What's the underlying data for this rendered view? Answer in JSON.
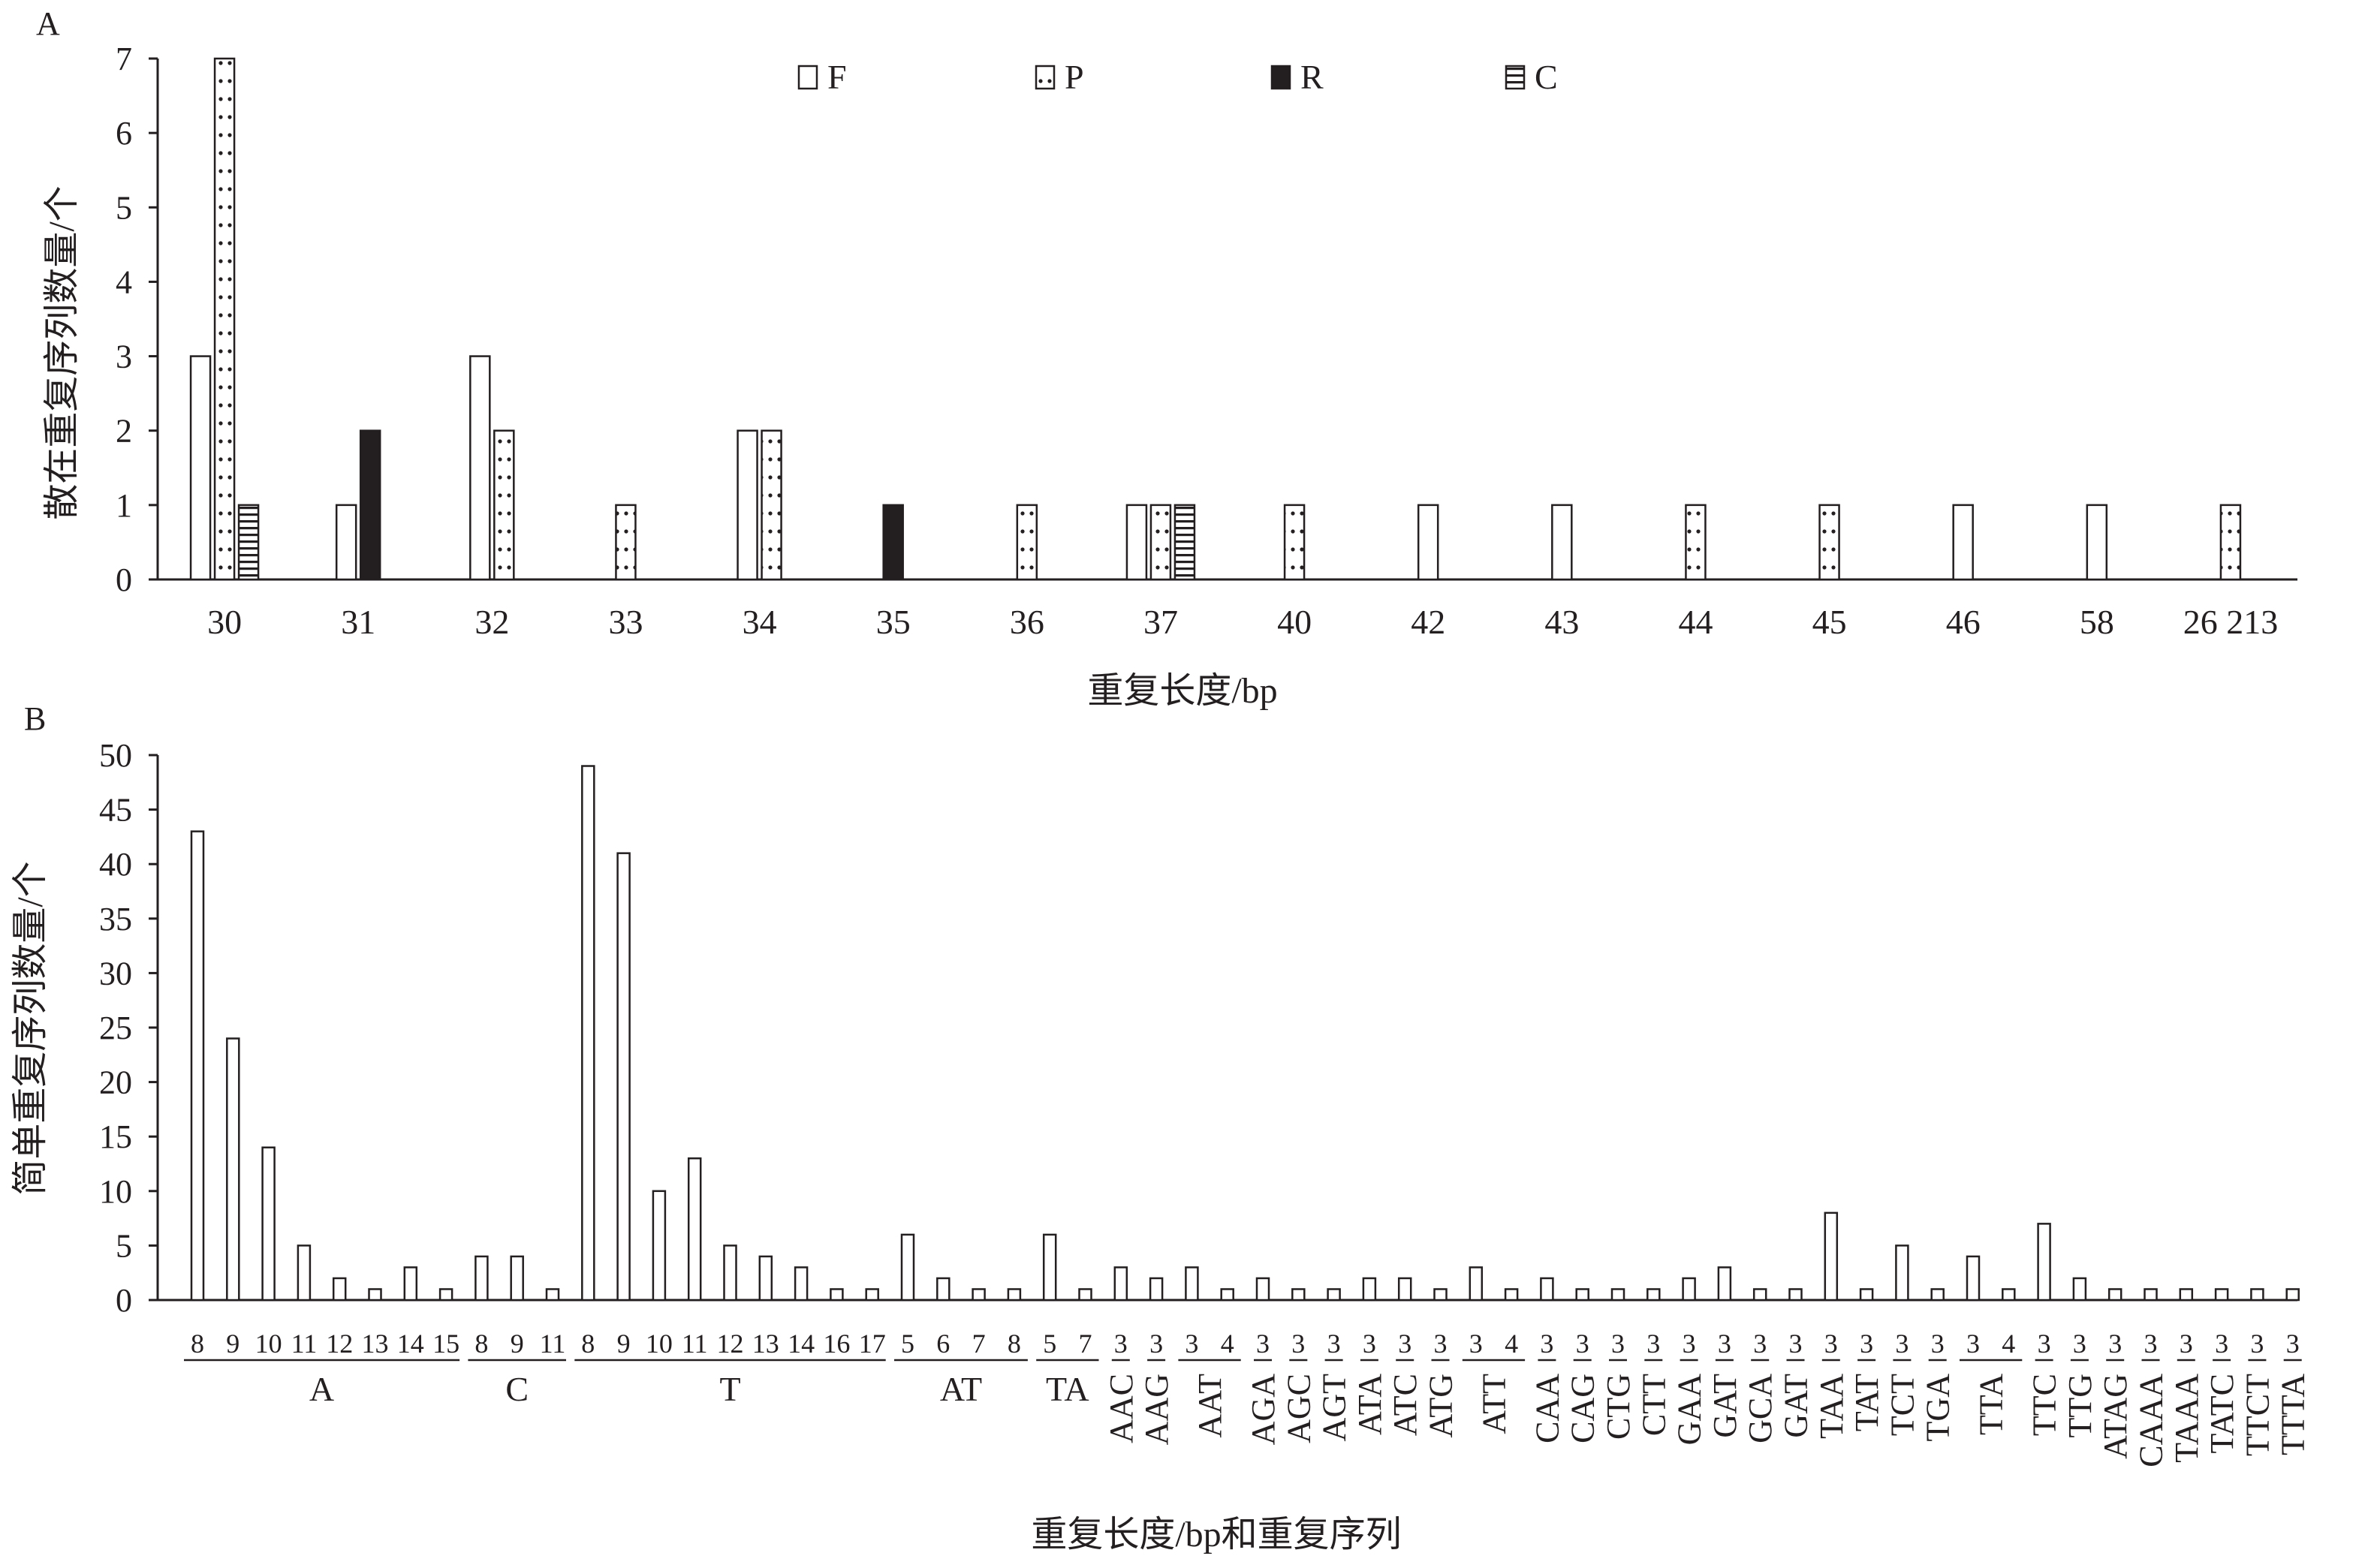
{
  "chart_data": [
    {
      "panel_label": "A",
      "type": "bar",
      "ylabel": "散在重复序列数量/个",
      "xlabel": "重复长度/bp",
      "ylim": [
        0,
        7
      ],
      "yticks": [
        0,
        1,
        2,
        3,
        4,
        5,
        6,
        7
      ],
      "grid": false,
      "legend_position": "top-center",
      "categories": [
        "30",
        "31",
        "32",
        "33",
        "34",
        "35",
        "36",
        "37",
        "40",
        "42",
        "43",
        "44",
        "45",
        "46",
        "58",
        "26 213"
      ],
      "series": [
        {
          "name": "F",
          "pattern": "open",
          "values": [
            3,
            1,
            3,
            null,
            2,
            null,
            null,
            1,
            null,
            1,
            1,
            null,
            null,
            1,
            1,
            null
          ]
        },
        {
          "name": "P",
          "pattern": "dots",
          "values": [
            7,
            null,
            2,
            1,
            2,
            null,
            1,
            1,
            1,
            null,
            null,
            1,
            1,
            null,
            null,
            1
          ]
        },
        {
          "name": "R",
          "pattern": "solid",
          "values": [
            null,
            2,
            null,
            null,
            null,
            1,
            null,
            null,
            null,
            null,
            null,
            null,
            null,
            null,
            null,
            null
          ]
        },
        {
          "name": "C",
          "pattern": "hlines",
          "values": [
            1,
            null,
            null,
            null,
            null,
            null,
            null,
            1,
            null,
            null,
            null,
            null,
            null,
            null,
            null,
            null
          ]
        }
      ]
    },
    {
      "panel_label": "B",
      "type": "bar",
      "ylabel": "简单重复序列数量/个",
      "xlabel": "重复长度/bp和重复序列",
      "ylim": [
        0,
        50
      ],
      "yticks": [
        0,
        5,
        10,
        15,
        20,
        25,
        30,
        35,
        40,
        45,
        50
      ],
      "grid": false,
      "groups": [
        {
          "motif": "A",
          "lengths": [
            "8",
            "9",
            "10",
            "11",
            "12",
            "13",
            "14",
            "15"
          ],
          "values": [
            43,
            24,
            14,
            5,
            2,
            1,
            3,
            1
          ]
        },
        {
          "motif": "C",
          "lengths": [
            "8",
            "9",
            "11"
          ],
          "values": [
            4,
            4,
            1
          ]
        },
        {
          "motif": "T",
          "lengths": [
            "8",
            "9",
            "10",
            "11",
            "12",
            "13",
            "14",
            "16",
            "17"
          ],
          "values": [
            49,
            41,
            10,
            13,
            5,
            4,
            3,
            1,
            1
          ]
        },
        {
          "motif": "AT",
          "lengths": [
            "5",
            "6",
            "7",
            "8"
          ],
          "values": [
            6,
            2,
            1,
            1
          ]
        },
        {
          "motif": "TA",
          "lengths": [
            "5",
            "7"
          ],
          "values": [
            6,
            1
          ]
        },
        {
          "motif": "AAC",
          "lengths": [
            "3"
          ],
          "values": [
            3
          ]
        },
        {
          "motif": "AAG",
          "lengths": [
            "3"
          ],
          "values": [
            2
          ]
        },
        {
          "motif": "AAT",
          "lengths": [
            "3",
            "4"
          ],
          "values": [
            3,
            1
          ]
        },
        {
          "motif": "AGA",
          "lengths": [
            "3"
          ],
          "values": [
            2
          ]
        },
        {
          "motif": "AGC",
          "lengths": [
            "3"
          ],
          "values": [
            1
          ]
        },
        {
          "motif": "AGT",
          "lengths": [
            "3"
          ],
          "values": [
            1
          ]
        },
        {
          "motif": "ATA",
          "lengths": [
            "3"
          ],
          "values": [
            2
          ]
        },
        {
          "motif": "ATC",
          "lengths": [
            "3"
          ],
          "values": [
            2
          ]
        },
        {
          "motif": "ATG",
          "lengths": [
            "3"
          ],
          "values": [
            1
          ]
        },
        {
          "motif": "ATT",
          "lengths": [
            "3",
            "4"
          ],
          "values": [
            3,
            1
          ]
        },
        {
          "motif": "CAA",
          "lengths": [
            "3"
          ],
          "values": [
            2
          ]
        },
        {
          "motif": "CAG",
          "lengths": [
            "3"
          ],
          "values": [
            1
          ]
        },
        {
          "motif": "CTG",
          "lengths": [
            "3"
          ],
          "values": [
            1
          ]
        },
        {
          "motif": "CTT",
          "lengths": [
            "3"
          ],
          "values": [
            1
          ]
        },
        {
          "motif": "GAA",
          "lengths": [
            "3"
          ],
          "values": [
            2
          ]
        },
        {
          "motif": "GAT",
          "lengths": [
            "3"
          ],
          "values": [
            3
          ]
        },
        {
          "motif": "GCA",
          "lengths": [
            "3"
          ],
          "values": [
            1
          ]
        },
        {
          "motif": "GAT",
          "lengths": [
            "3"
          ],
          "values": [
            1
          ]
        },
        {
          "motif": "TAA",
          "lengths": [
            "3"
          ],
          "values": [
            8
          ]
        },
        {
          "motif": "TAT",
          "lengths": [
            "3"
          ],
          "values": [
            1
          ]
        },
        {
          "motif": "TCT",
          "lengths": [
            "3"
          ],
          "values": [
            5
          ]
        },
        {
          "motif": "TGA",
          "lengths": [
            "3"
          ],
          "values": [
            1
          ]
        },
        {
          "motif": "TTA",
          "lengths": [
            "3",
            "4"
          ],
          "values": [
            4,
            1
          ]
        },
        {
          "motif": "TTC",
          "lengths": [
            "3"
          ],
          "values": [
            7
          ]
        },
        {
          "motif": "TTG",
          "lengths": [
            "3"
          ],
          "values": [
            2
          ]
        },
        {
          "motif": "ATAG",
          "lengths": [
            "3"
          ],
          "values": [
            1
          ]
        },
        {
          "motif": "CAAA",
          "lengths": [
            "3"
          ],
          "values": [
            1
          ]
        },
        {
          "motif": "TAAA",
          "lengths": [
            "3"
          ],
          "values": [
            1
          ]
        },
        {
          "motif": "TATC",
          "lengths": [
            "3"
          ],
          "values": [
            1
          ]
        },
        {
          "motif": "TTCT",
          "lengths": [
            "3"
          ],
          "values": [
            1
          ]
        },
        {
          "motif": "TTTA",
          "lengths": [
            "3"
          ],
          "values": [
            1
          ]
        }
      ]
    }
  ]
}
